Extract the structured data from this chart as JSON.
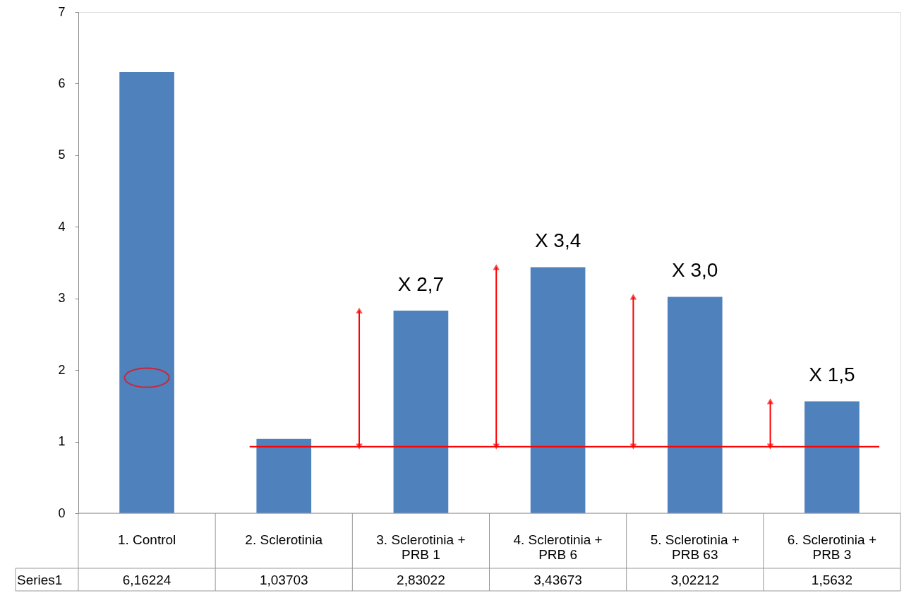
{
  "chart_data": {
    "type": "bar",
    "categories": [
      "1. Control",
      "2. Sclerotinia",
      "3. Sclerotinia + PRB 1",
      "4. Sclerotinia + PRB 6",
      "5. Sclerotinia + PRB 63",
      "6. Sclerotinia + PRB 3"
    ],
    "series": [
      {
        "name": "Series1",
        "color": "#4f81bd",
        "values": [
          6.16224,
          1.03703,
          2.83022,
          3.43673,
          3.02212,
          1.5632
        ],
        "value_labels": [
          "6,16224",
          "1,03703",
          "2,83022",
          "3,43673",
          "3,02212",
          "1,5632"
        ]
      }
    ],
    "ylim": [
      0,
      7
    ],
    "yticks": [
      0,
      1,
      2,
      3,
      4,
      5,
      6,
      7
    ],
    "grid": false,
    "ref_lines": [
      {
        "axis": "y",
        "value": 0.93,
        "color": "#ff0000"
      }
    ],
    "annotations": [
      {
        "text": "X 2,7",
        "x": "3. Sclerotinia + PRB 1",
        "y": 2.83022
      },
      {
        "text": "X 3,4",
        "x": "4. Sclerotinia + PRB 6",
        "y": 3.43673
      },
      {
        "text": "X 3,0",
        "x": "5. Sclerotinia + PRB 63",
        "y": 3.02212
      },
      {
        "text": "X 1,5",
        "x": "6. Sclerotinia + PRB 3",
        "y": 1.5632
      }
    ]
  }
}
